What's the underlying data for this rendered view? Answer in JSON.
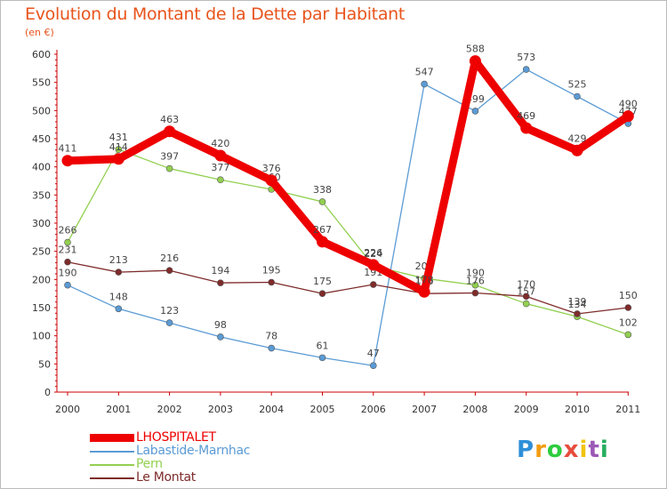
{
  "title": "Evolution du Montant de la Dette par Habitant",
  "subtitle": "(en €)",
  "brand": {
    "letters": [
      "P",
      "r",
      "o",
      "x",
      "i",
      "t",
      "i"
    ],
    "colors": [
      "#2f8fd8",
      "#f39c12",
      "#2ecc40",
      "#e74c3c",
      "#f1c40f",
      "#9b59b6",
      "#27ae60"
    ]
  },
  "chart_data": {
    "type": "line",
    "x": [
      "2000",
      "2001",
      "2002",
      "2003",
      "2004",
      "2005",
      "2006",
      "2007",
      "2008",
      "2009",
      "2010",
      "2011"
    ],
    "y_ticks": [
      "0",
      "50",
      "100",
      "150",
      "200",
      "250",
      "300",
      "350",
      "400",
      "450",
      "500",
      "550",
      "600"
    ],
    "ylim": [
      0,
      600
    ],
    "grid": false,
    "legend_position": "bottom-left",
    "series": [
      {
        "name": "Labastide-Marnhac",
        "color": "#5b9bd5",
        "values": [
          190,
          148,
          123,
          98,
          78,
          61,
          47,
          547,
          499,
          573,
          525,
          477
        ],
        "labels": [
          "190",
          "148",
          "123",
          "98",
          "78",
          "61",
          "47",
          "547",
          "499",
          "573",
          "525",
          "477"
        ]
      },
      {
        "name": "Pern",
        "color": "#92d050",
        "values": [
          266,
          431,
          397,
          377,
          360,
          338,
          224,
          202,
          190,
          157,
          134,
          102
        ],
        "labels": [
          "266",
          "431",
          "397",
          "377",
          "360",
          "338",
          "224",
          "202",
          "190",
          "157",
          "134",
          "102"
        ]
      },
      {
        "name": "Le Montat",
        "color": "#7f2b2b",
        "values": [
          231,
          213,
          216,
          194,
          195,
          175,
          191,
          175,
          176,
          170,
          139,
          150
        ],
        "labels": [
          "231",
          "213",
          "216",
          "194",
          "195",
          "175",
          "191",
          "175",
          "176",
          "170",
          "139",
          "150"
        ]
      },
      {
        "name": "LHOSPITALET",
        "color": "#ee0000",
        "values": [
          411,
          414,
          463,
          420,
          376,
          267,
          226,
          178,
          588,
          469,
          429,
          490
        ],
        "labels": [
          "411",
          "414",
          "463",
          "420",
          "376",
          "267",
          "226",
          "178",
          "588",
          "469",
          "429",
          "490"
        ]
      }
    ],
    "legend_order": [
      "LHOSPITALET",
      "Labastide-Marnhac",
      "Pern",
      "Le Montat"
    ]
  }
}
